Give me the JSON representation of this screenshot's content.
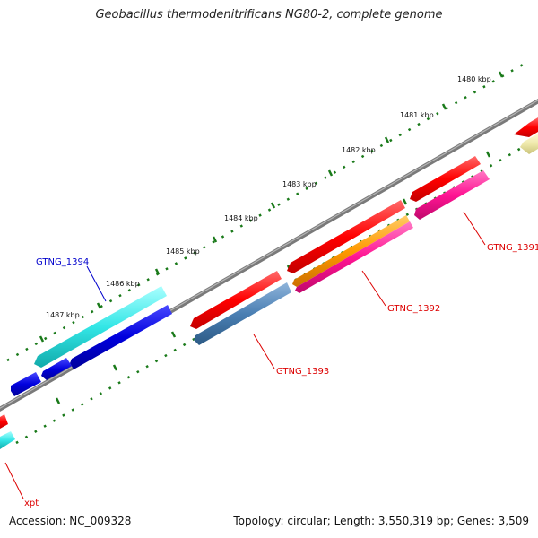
{
  "title": "Geobacillus thermodenitrificans NG80-2, complete genome",
  "footer": {
    "accession": "Accession: NC_009328",
    "summary": "Topology: circular; Length: 3,550,319 bp; Genes: 3,509"
  },
  "ticks": [
    "1480 kbp",
    "1481 kbp",
    "1482 kbp",
    "1483 kbp",
    "1484 kbp",
    "1485 kbp",
    "1486 kbp",
    "1487 kbp"
  ],
  "gene_labels": {
    "gtng_1394": "GTNG_1394",
    "gtng_1391": "GTNG_1391",
    "gtng_1392": "GTNG_1392",
    "gtng_1393": "GTNG_1393",
    "xpt": "xpt"
  },
  "colors": {
    "red": "#ff0000",
    "cyan": "#33e6e6",
    "blue": "#0000dd",
    "steelblue": "#4a7fb3",
    "orange": "#ff9900",
    "pink": "#ff1493",
    "lightyellow": "#eee8aa",
    "backbone": "#7f7f7f",
    "tickgreen": "#1a7a1a"
  }
}
